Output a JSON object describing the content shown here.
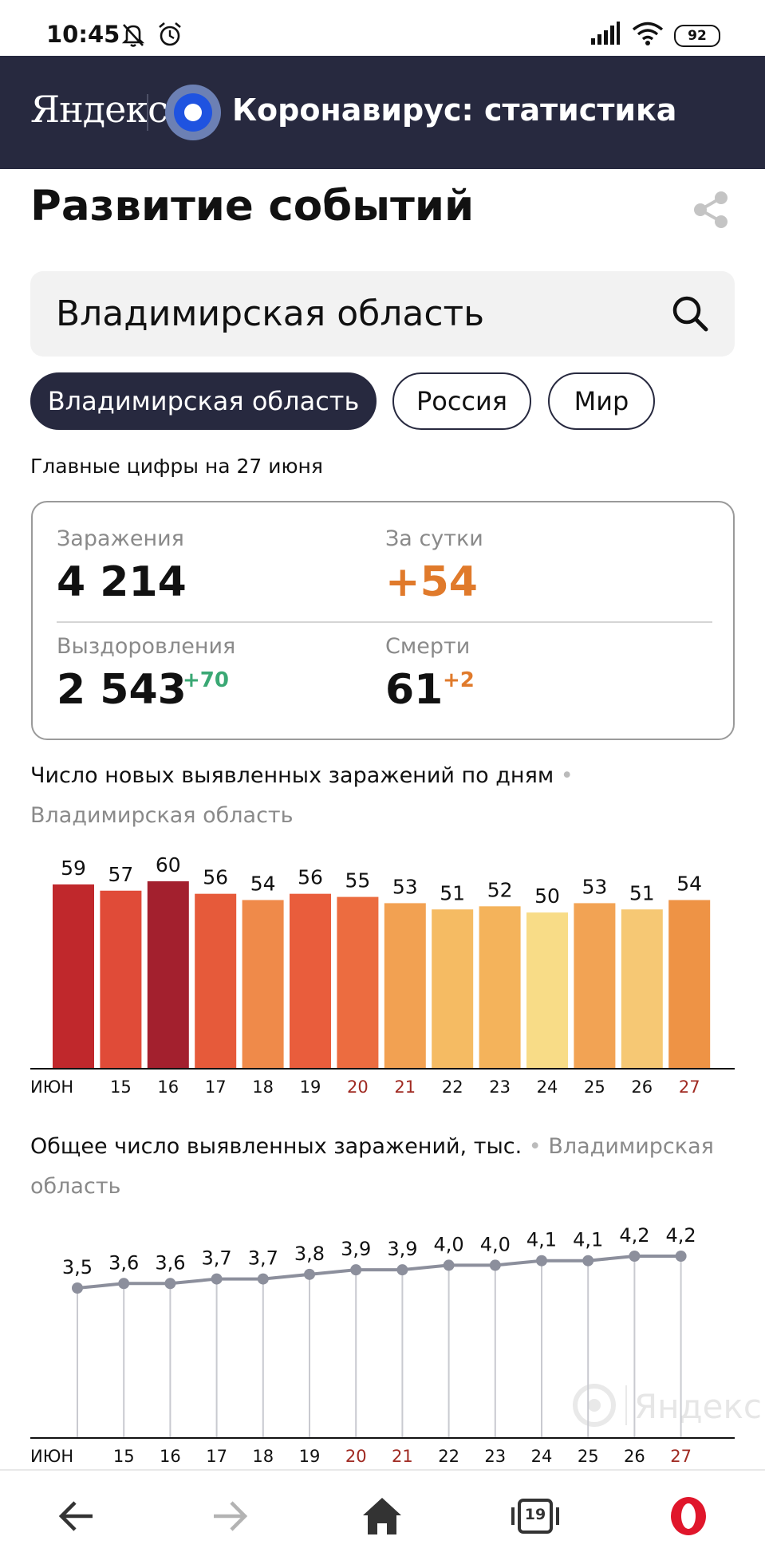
{
  "status_bar": {
    "time": "10:45",
    "battery": "92"
  },
  "header": {
    "logo": "Яндекс",
    "title": "Коронавирус: статистика"
  },
  "page": {
    "title": "Развитие событий"
  },
  "search": {
    "value": "Владимирская область"
  },
  "tabs": [
    {
      "label": "Владимирская область",
      "active": true
    },
    {
      "label": "Россия",
      "active": false
    },
    {
      "label": "Мир",
      "active": false
    }
  ],
  "summary": {
    "heading": "Главные цифры на 27 июня",
    "infections": {
      "label": "Заражения",
      "value": "4 214"
    },
    "daily": {
      "label": "За сутки",
      "value": "+54"
    },
    "recoveries": {
      "label": "Выздоровления",
      "value": "2 543",
      "delta": "+70"
    },
    "deaths": {
      "label": "Смерти",
      "value": "61",
      "delta": "+2"
    },
    "colors": {
      "orange": "#e07a2b",
      "green": "#3aa874"
    }
  },
  "chart_data": [
    {
      "type": "bar",
      "title": "Число новых выявленных заражений по дням",
      "region": "Владимирская область",
      "categories": [
        "ИЮН",
        "15",
        "16",
        "17",
        "18",
        "19",
        "20",
        "21",
        "22",
        "23",
        "24",
        "25",
        "26",
        "27"
      ],
      "values": [
        59,
        57,
        60,
        56,
        54,
        56,
        55,
        53,
        51,
        52,
        50,
        53,
        51,
        54
      ],
      "bar_colors": [
        "#c0282c",
        "#e04b38",
        "#a3202e",
        "#e65a3a",
        "#ef8a4a",
        "#e95d3c",
        "#ec6c40",
        "#f2a152",
        "#f5bb63",
        "#f4b35b",
        "#f8dc87",
        "#f2a354",
        "#f6c874",
        "#ee9345"
      ],
      "weekend_categories": [
        "20",
        "21",
        "27"
      ],
      "weekend_color": "#a02a22"
    },
    {
      "type": "line",
      "title": "Общее число выявленных заражений, тыс.",
      "region": "Владимирская область",
      "categories": [
        "ИЮН",
        "15",
        "16",
        "17",
        "18",
        "19",
        "20",
        "21",
        "22",
        "23",
        "24",
        "25",
        "26",
        "27"
      ],
      "values": [
        3.5,
        3.6,
        3.6,
        3.7,
        3.7,
        3.8,
        3.9,
        3.9,
        4.0,
        4.0,
        4.1,
        4.1,
        4.2,
        4.2
      ],
      "labels": [
        "3,5",
        "3,6",
        "3,6",
        "3,7",
        "3,7",
        "3,8",
        "3,9",
        "3,9",
        "4,0",
        "4,0",
        "4,1",
        "4,1",
        "4,2",
        "4,2"
      ],
      "line_color": "#8c8f9c",
      "watermark": "Яндекс",
      "weekend_categories": [
        "20",
        "21",
        "27"
      ],
      "weekend_color": "#a02a22"
    }
  ],
  "navbar": {
    "items": [
      {
        "name": "back-button",
        "icon": "arrow-left-icon"
      },
      {
        "name": "forward-button",
        "icon": "arrow-right-icon"
      },
      {
        "name": "home-button",
        "icon": "home-icon"
      },
      {
        "name": "tabs-button",
        "icon": "tabs-icon",
        "count": "19"
      },
      {
        "name": "opera-menu-button",
        "icon": "opera-icon"
      }
    ]
  }
}
